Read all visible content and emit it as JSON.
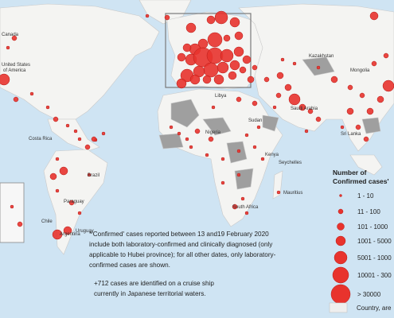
{
  "map": {
    "labels": [
      "Canada",
      "United States",
      "of America",
      "Brazil",
      "Argentina",
      "Chile",
      "Paraguay",
      "Uruguay",
      "Kazakhstan",
      "Mongolia",
      "Sri Lanka",
      "Saudi Arabia",
      "Sudan",
      "Libya",
      "Nigeria",
      "Kenya",
      "South Africa",
      "Seychelles",
      "Mauritius",
      "Costa Rica"
    ]
  },
  "legend": {
    "title": [
      "Number of",
      "Confirmed cases'"
    ],
    "items": [
      "1 - 10",
      "11 - 100",
      "101 - 1000",
      "1001 - 5000",
      "5001 - 1000",
      "10001 - 300",
      "> 30000"
    ],
    "area_label": "Country, are"
  },
  "notes": [
    [
      "*'Confirmed' cases reported between 13 and19 February 2020",
      "include both laboratory-confirmed and clinically diagnosed (only",
      "applicable to Hubei province); for all other dates, only laboratory-",
      "confirmed cases are shown."
    ],
    [
      "+712 cases are identified on a cruise ship",
      "currently in Japanese territorial waters."
    ]
  ]
}
